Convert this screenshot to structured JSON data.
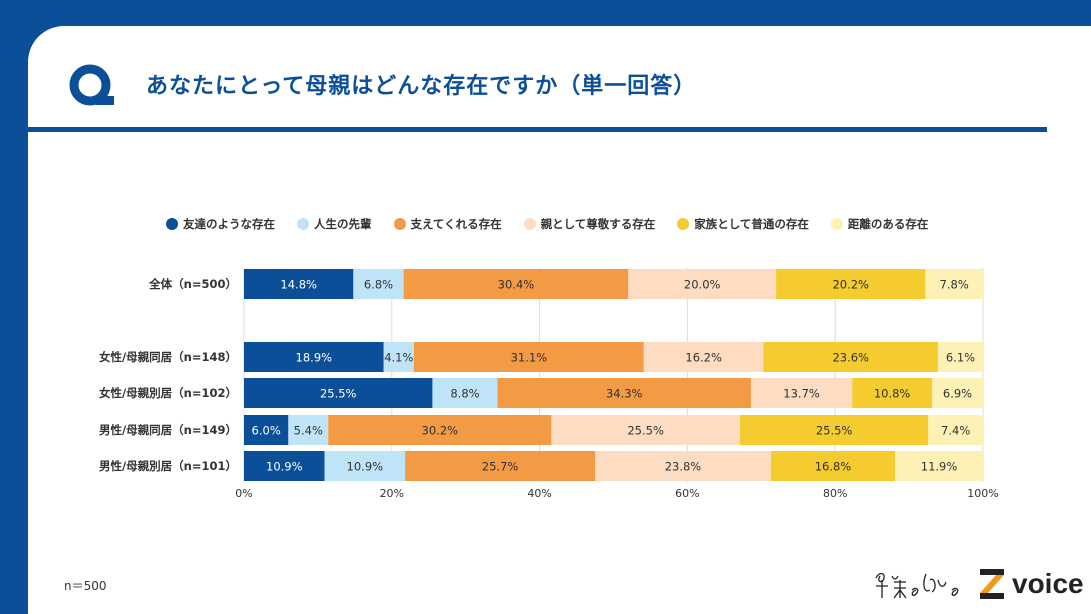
{
  "header": {
    "title": "あなたにとって母親はどんな存在ですか（単一回答）",
    "icon": "q-icon"
  },
  "note": "n＝500",
  "logo": {
    "left": "僕と私と",
    "right": "voice"
  },
  "chart_data": {
    "type": "bar",
    "orientation": "horizontal",
    "stacked": true,
    "categories": [
      "全体（n=500）",
      "女性/母親同居（n=148）",
      "女性/母親別居（n=102）",
      "男性/母親同居（n=149）",
      "男性/母親別居（n=101）"
    ],
    "series": [
      {
        "name": "友達のような存在",
        "color": "#0b4f99",
        "values": [
          14.8,
          18.9,
          25.5,
          6.0,
          10.9
        ]
      },
      {
        "name": "人生の先輩",
        "color": "#bfe4f8",
        "values": [
          6.8,
          4.1,
          8.8,
          5.4,
          10.9
        ]
      },
      {
        "name": "支えてくれる存在",
        "color": "#f39a45",
        "values": [
          30.4,
          31.1,
          34.3,
          30.2,
          25.7
        ]
      },
      {
        "name": "親として尊敬する存在",
        "color": "#fddcc2",
        "values": [
          20.0,
          16.2,
          13.7,
          25.5,
          23.8
        ]
      },
      {
        "name": "家族として普通の存在",
        "color": "#f5cc2f",
        "values": [
          20.2,
          23.6,
          10.8,
          25.5,
          16.8
        ]
      },
      {
        "name": "距離のある存在",
        "color": "#fdf1b6",
        "values": [
          7.8,
          6.1,
          6.9,
          7.4,
          11.9
        ]
      }
    ],
    "xticks": [
      "0%",
      "20%",
      "40%",
      "60%",
      "80%",
      "100%"
    ],
    "xlim": [
      0,
      100
    ],
    "grid": true,
    "legend": "top"
  }
}
